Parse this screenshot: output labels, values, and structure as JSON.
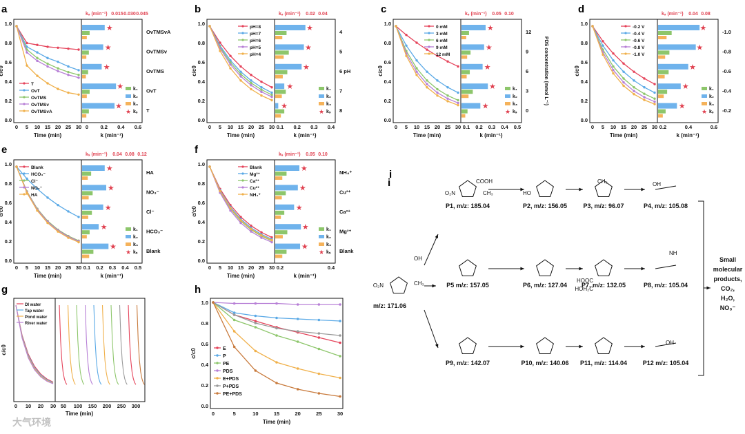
{
  "panel_letters": [
    "a",
    "b",
    "c",
    "d",
    "e",
    "f",
    "g",
    "h",
    "i"
  ],
  "colors": {
    "red": "#e5435a",
    "blue": "#5aa9e6",
    "green": "#8dc66b",
    "purple": "#b77fd6",
    "orange": "#f0b04a",
    "gray": "#9a9a9a",
    "brown": "#c87a3c",
    "k1": "#8dc66b",
    "k2": "#6fb3ec",
    "k3": "#f5b25a",
    "ks": "#e0404f"
  },
  "chart_data": [
    {
      "id": "a",
      "type": "line+bar",
      "ylabel": "c/c0",
      "xlabel": "Time (min)",
      "xlim": [
        0,
        30
      ],
      "ylim": [
        0,
        1.0
      ],
      "x": [
        0,
        5,
        10,
        15,
        20,
        25,
        30
      ],
      "series": [
        {
          "name": "T",
          "color": "red",
          "values": [
            1.0,
            0.82,
            0.8,
            0.78,
            0.77,
            0.76,
            0.75
          ]
        },
        {
          "name": "OvT",
          "color": "blue",
          "values": [
            1.0,
            0.78,
            0.72,
            0.66,
            0.62,
            0.57,
            0.53
          ]
        },
        {
          "name": "OvTMS",
          "color": "green",
          "values": [
            1.0,
            0.75,
            0.66,
            0.6,
            0.55,
            0.51,
            0.48
          ]
        },
        {
          "name": "OvTMSv",
          "color": "purple",
          "values": [
            1.0,
            0.72,
            0.63,
            0.57,
            0.52,
            0.48,
            0.45
          ]
        },
        {
          "name": "OvTMSvA",
          "color": "orange",
          "values": [
            1.0,
            0.58,
            0.47,
            0.39,
            0.33,
            0.29,
            0.27
          ]
        }
      ],
      "bar_categories": [
        "OvTMSvA",
        "OvTMSv",
        "OvTMS",
        "OvT",
        "T"
      ],
      "bar_xlabel": "k (min⁻¹)",
      "bar_xticks": [
        "0",
        "0.2",
        "0.4",
        "0.6"
      ],
      "ks_label": "kₛ (min⁻¹)",
      "ks_ticks": [
        "0.015",
        "0.030",
        "0.045"
      ],
      "legend": [
        "k₁",
        "k₂",
        "k₃",
        "kₛ"
      ],
      "series_labels": [
        "T",
        "OvT",
        "OvTMS",
        "OvTMSv",
        "OvTMSvA"
      ]
    },
    {
      "id": "b",
      "type": "line+bar",
      "ylabel": "c/c0",
      "xlabel": "Time (min)",
      "series_labels": [
        "pH=8",
        "pH=7",
        "pH=6",
        "pH=5",
        "pH=4"
      ],
      "bar_categories": [
        "4",
        "5",
        "6 pH",
        "7",
        "8"
      ],
      "bar_xlabel": "k (min⁻¹)",
      "bar_xticks": [
        "0.1",
        "0.2",
        "0.3",
        "0.4"
      ],
      "ks_label": "kₛ (min⁻¹)",
      "ks_ticks": [
        "0.02",
        "0.04"
      ]
    },
    {
      "id": "c",
      "type": "line+bar",
      "ylabel": "c/c0",
      "xlabel": "Time (min)",
      "series_labels": [
        "0 mM",
        "3 mM",
        "6 mM",
        "9 mM",
        "12 mM"
      ],
      "bar_categories": [
        "12",
        "9",
        "6",
        "3",
        "0"
      ],
      "bar_ylabel": "PDS concentration (mmol L⁻¹)",
      "bar_xlabel": "k (min⁻¹)",
      "bar_xticks": [
        "0.1",
        "0.2",
        "0.3",
        "0.4",
        "0.5"
      ],
      "ks_label": "kₛ (min⁻¹)",
      "ks_ticks": [
        "0.05",
        "0.10"
      ]
    },
    {
      "id": "d",
      "type": "line+bar",
      "ylabel": "c/c0",
      "xlabel": "Time (min)",
      "series_labels": [
        "-0.2 V",
        "-0.4 V",
        "-0.6 V",
        "-0.8 V",
        "-1.0 V"
      ],
      "bar_categories": [
        "-1.0",
        "-0.8",
        "-0.6",
        "-0.4",
        "-0.2"
      ],
      "bar_xlabel": "k (min⁻¹)",
      "bar_xticks": [
        "0.2",
        "0.4",
        "0.6"
      ],
      "ks_label": "kₛ (min⁻¹)",
      "ks_ticks": [
        "0.04",
        "0.08"
      ]
    },
    {
      "id": "e",
      "type": "line+bar",
      "ylabel": "c/c0",
      "xlabel": "Time (min)",
      "series_labels": [
        "Blank",
        "HCO₃⁻",
        "Cl⁻",
        "NO₃⁻",
        "HA"
      ],
      "bar_categories": [
        "HA",
        "NO₃⁻",
        "Cl⁻",
        "HCO₃⁻",
        "Blank"
      ],
      "bar_xlabel": "k (min⁻¹)",
      "bar_xticks": [
        "0.1",
        "0.2",
        "0.3",
        "0.4",
        "0.5"
      ],
      "ks_label": "kₛ (min⁻¹)",
      "ks_ticks": [
        "0.04",
        "0.08",
        "0.12"
      ]
    },
    {
      "id": "f",
      "type": "line+bar",
      "ylabel": "c/c0",
      "xlabel": "Time (min)",
      "series_labels": [
        "Blank",
        "Mg²⁺",
        "Ca²⁺",
        "Cu²⁺",
        "NH₄⁺"
      ],
      "bar_categories": [
        "NH₄⁺",
        "Cu²⁺",
        "Ca²⁺",
        "Mg²⁺",
        "Blank"
      ],
      "bar_xlabel": "k (min⁻¹)",
      "bar_xticks": [
        "0.2",
        "0.4"
      ],
      "ks_label": "kₛ (min⁻¹)",
      "ks_ticks": [
        "0.05",
        "0.10"
      ]
    },
    {
      "id": "g",
      "type": "line",
      "ylabel": "c/c0",
      "xlabel": "Time (min)",
      "series_labels": [
        "DI water",
        "Tap water",
        "Pond water",
        "River water"
      ],
      "xticks_left": [
        "0",
        "10",
        "20",
        "30"
      ],
      "xticks_right": [
        "50",
        "100",
        "150",
        "200",
        "250",
        "300"
      ]
    },
    {
      "id": "h",
      "type": "line",
      "ylabel": "c/c0",
      "xlabel": "Time (min)",
      "xlim": [
        0,
        30
      ],
      "ylim": [
        0,
        1.0
      ],
      "x": [
        0,
        5,
        10,
        15,
        20,
        25,
        30
      ],
      "series": [
        {
          "name": "E",
          "color": "red",
          "values": [
            1.0,
            0.88,
            0.82,
            0.76,
            0.71,
            0.66,
            0.61
          ]
        },
        {
          "name": "P",
          "color": "blue",
          "values": [
            1.0,
            0.9,
            0.87,
            0.85,
            0.84,
            0.83,
            0.82
          ]
        },
        {
          "name": "PE",
          "color": "green",
          "values": [
            1.0,
            0.83,
            0.76,
            0.68,
            0.62,
            0.55,
            0.48
          ]
        },
        {
          "name": "PDS",
          "color": "purple",
          "values": [
            1.0,
            0.99,
            0.99,
            0.99,
            0.98,
            0.98,
            0.98
          ]
        },
        {
          "name": "E+PDS",
          "color": "orange",
          "values": [
            1.0,
            0.72,
            0.53,
            0.42,
            0.36,
            0.31,
            0.27
          ]
        },
        {
          "name": "P+PDS",
          "color": "gray",
          "values": [
            1.0,
            0.88,
            0.8,
            0.75,
            0.72,
            0.7,
            0.68
          ]
        },
        {
          "name": "PE+PDS",
          "color": "brown",
          "values": [
            1.0,
            0.57,
            0.34,
            0.22,
            0.16,
            0.12,
            0.09
          ]
        }
      ]
    }
  ],
  "panel_i": {
    "parent": "m/z: 171.06",
    "products": [
      {
        "id": "P1",
        "label": "P1, m/z: 185.04"
      },
      {
        "id": "P2",
        "label": "P2, m/z: 156.05"
      },
      {
        "id": "P3",
        "label": "P3, m/z: 96.07"
      },
      {
        "id": "P4",
        "label": "P4, m/z: 105.08"
      },
      {
        "id": "P5",
        "label": "P5 m/z: 157.05"
      },
      {
        "id": "P6",
        "label": "P6, m/z: 127.04"
      },
      {
        "id": "P7",
        "label": "P7, m/z: 132.05"
      },
      {
        "id": "P8",
        "label": "P8, m/z: 105.04"
      },
      {
        "id": "P9",
        "label": "P9, m/z: 142.07"
      },
      {
        "id": "P10",
        "label": "P10, m/z: 140.06"
      },
      {
        "id": "P11",
        "label": "P11, m/z: 114.04"
      },
      {
        "id": "P12",
        "label": "P12 m/z: 105.04"
      }
    ],
    "final_products": [
      "Small",
      "molecular",
      "products,",
      "CO₂,",
      "H₂O,",
      "NO₃⁻"
    ],
    "groups": [
      "COOH",
      "CH₃",
      "O₂N",
      "HO",
      "OH",
      "HOOC",
      "HOH₂C",
      "NH",
      "N",
      "OH"
    ]
  },
  "watermark": "大气环境"
}
